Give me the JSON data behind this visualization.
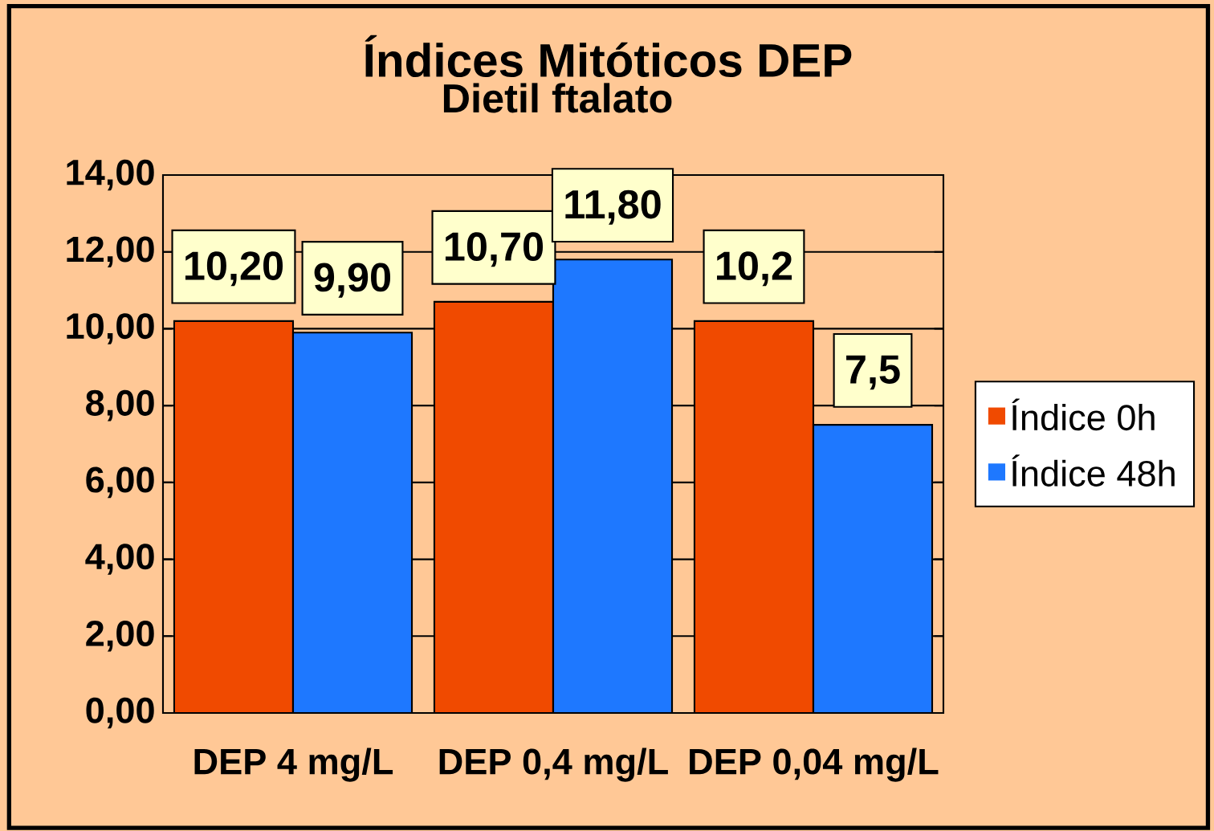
{
  "chart_data": {
    "type": "bar",
    "title": "Índices Mitóticos DEP",
    "subtitle": "Dietil ftalato",
    "categories": [
      "DEP 4 mg/L",
      "DEP 0,4 mg/L",
      "DEP 0,04 mg/L"
    ],
    "series": [
      {
        "name": "Índice 0h",
        "color": "#f04a00",
        "values": [
          10.2,
          10.7,
          10.2
        ],
        "value_labels": [
          "10,20",
          "10,70",
          "10,2"
        ]
      },
      {
        "name": "Índice 48h",
        "color": "#1e78ff",
        "values": [
          9.9,
          11.8,
          7.5
        ],
        "value_labels": [
          "9,90",
          "11,80",
          "7,5"
        ]
      }
    ],
    "ylim": [
      0,
      14
    ],
    "yticks": [
      {
        "value": 0,
        "label": "0,00"
      },
      {
        "value": 2,
        "label": "2,00"
      },
      {
        "value": 4,
        "label": "4,00"
      },
      {
        "value": 6,
        "label": "6,00"
      },
      {
        "value": 8,
        "label": "8,00"
      },
      {
        "value": 10,
        "label": "10,00"
      },
      {
        "value": 12,
        "label": "12,00"
      },
      {
        "value": 14,
        "label": "14,00"
      }
    ],
    "grid": "y",
    "legend": "right"
  }
}
